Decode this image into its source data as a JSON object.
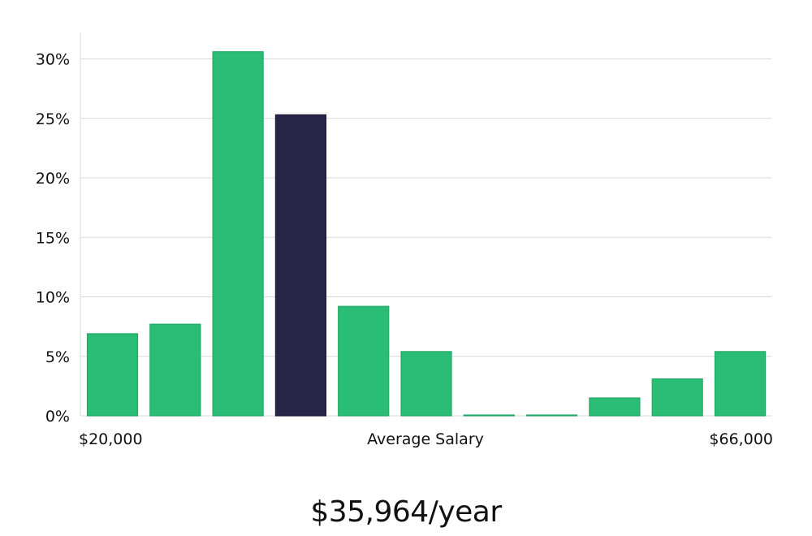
{
  "chart_data": {
    "type": "bar",
    "values": [
      6.9,
      7.7,
      30.6,
      25.3,
      9.2,
      5.4,
      0.05,
      0.05,
      1.5,
      3.1,
      5.4
    ],
    "highlight_index": 3,
    "ylim": [
      0,
      32
    ],
    "yticks": [
      0,
      5,
      10,
      15,
      20,
      25,
      30
    ],
    "ytick_labels": [
      "0%",
      "5%",
      "10%",
      "15%",
      "20%",
      "25%",
      "30%"
    ],
    "xlabel": "Average Salary",
    "x_min_label": "$20,000",
    "x_max_label": "$66,000",
    "grid": true,
    "colors": {
      "bar": "#2abd76",
      "highlight": "#282646",
      "grid": "#d9d9d9"
    }
  },
  "summary": {
    "salary": "$35,964/year"
  }
}
